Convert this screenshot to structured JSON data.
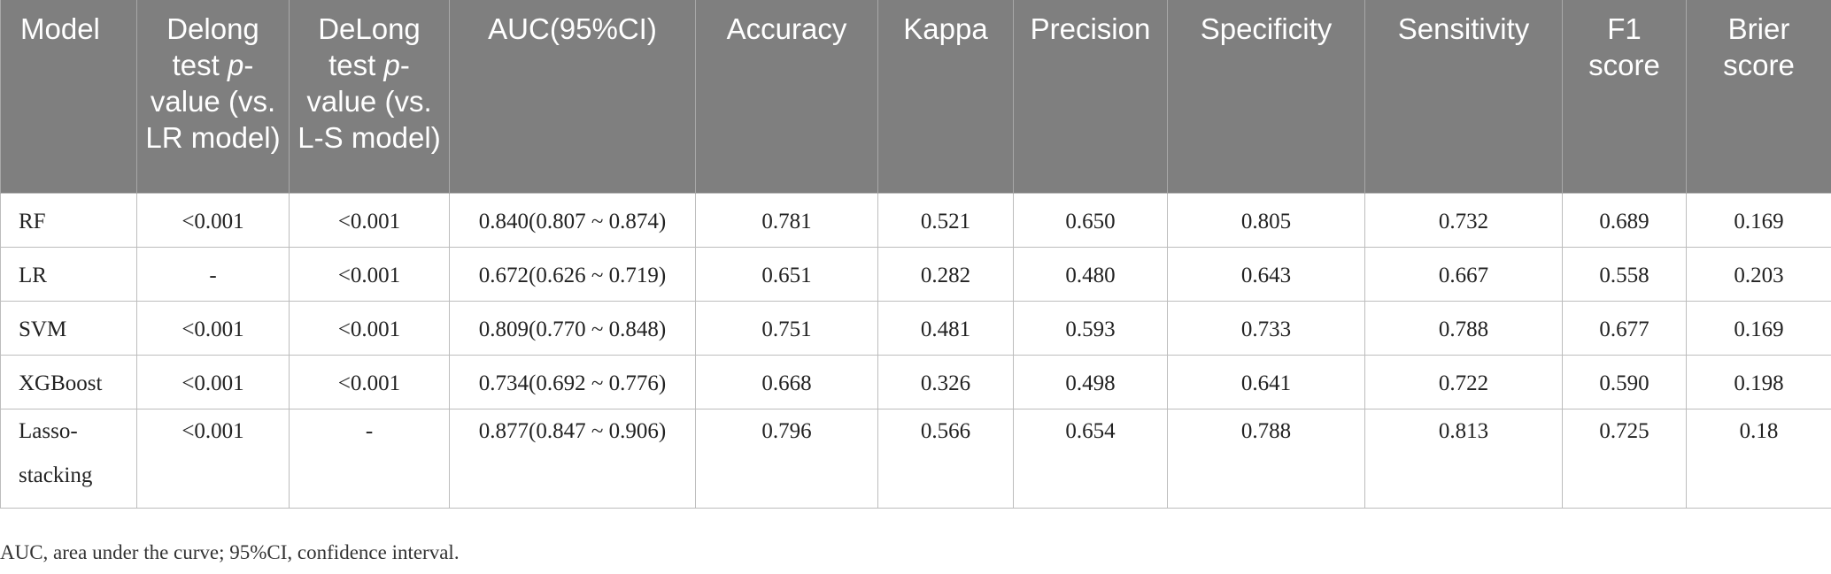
{
  "table": {
    "headers": [
      "Model",
      "Delong test p-value (vs. LR model)",
      "DeLong test p-value (vs. L-S model)",
      "AUC(95%CI)",
      "Accuracy",
      "Kappa",
      "Precision",
      "Specificity",
      "Sensitivity",
      "F1 score",
      "Brier score"
    ],
    "header_parts": {
      "delong_lr": {
        "pre": "Delong test ",
        "it": "p",
        "post": "-value (vs. LR model)"
      },
      "delong_ls": {
        "pre": "DeLong test ",
        "it": "p",
        "post": "-value (vs. L-S model)"
      }
    },
    "rows": [
      [
        "RF",
        "<0.001",
        "<0.001",
        "0.840(0.807 ~ 0.874)",
        "0.781",
        "0.521",
        "0.650",
        "0.805",
        "0.732",
        "0.689",
        "0.169"
      ],
      [
        "LR",
        "-",
        "<0.001",
        "0.672(0.626 ~ 0.719)",
        "0.651",
        "0.282",
        "0.480",
        "0.643",
        "0.667",
        "0.558",
        "0.203"
      ],
      [
        "SVM",
        "<0.001",
        "<0.001",
        "0.809(0.770 ~ 0.848)",
        "0.751",
        "0.481",
        "0.593",
        "0.733",
        "0.788",
        "0.677",
        "0.169"
      ],
      [
        "XGBoost",
        "<0.001",
        "<0.001",
        "0.734(0.692 ~ 0.776)",
        "0.668",
        "0.326",
        "0.498",
        "0.641",
        "0.722",
        "0.590",
        "0.198"
      ],
      [
        "Lasso-stacking",
        "<0.001",
        "-",
        "0.877(0.847 ~ 0.906)",
        "0.796",
        "0.566",
        "0.654",
        "0.788",
        "0.813",
        "0.725",
        "0.18"
      ]
    ]
  },
  "footnote": "AUC, area under the curve; 95%CI, confidence interval.",
  "colors": {
    "header_bg": "#7f7f7f",
    "header_text": "#ffffff",
    "grid": "#bdbdbd"
  }
}
